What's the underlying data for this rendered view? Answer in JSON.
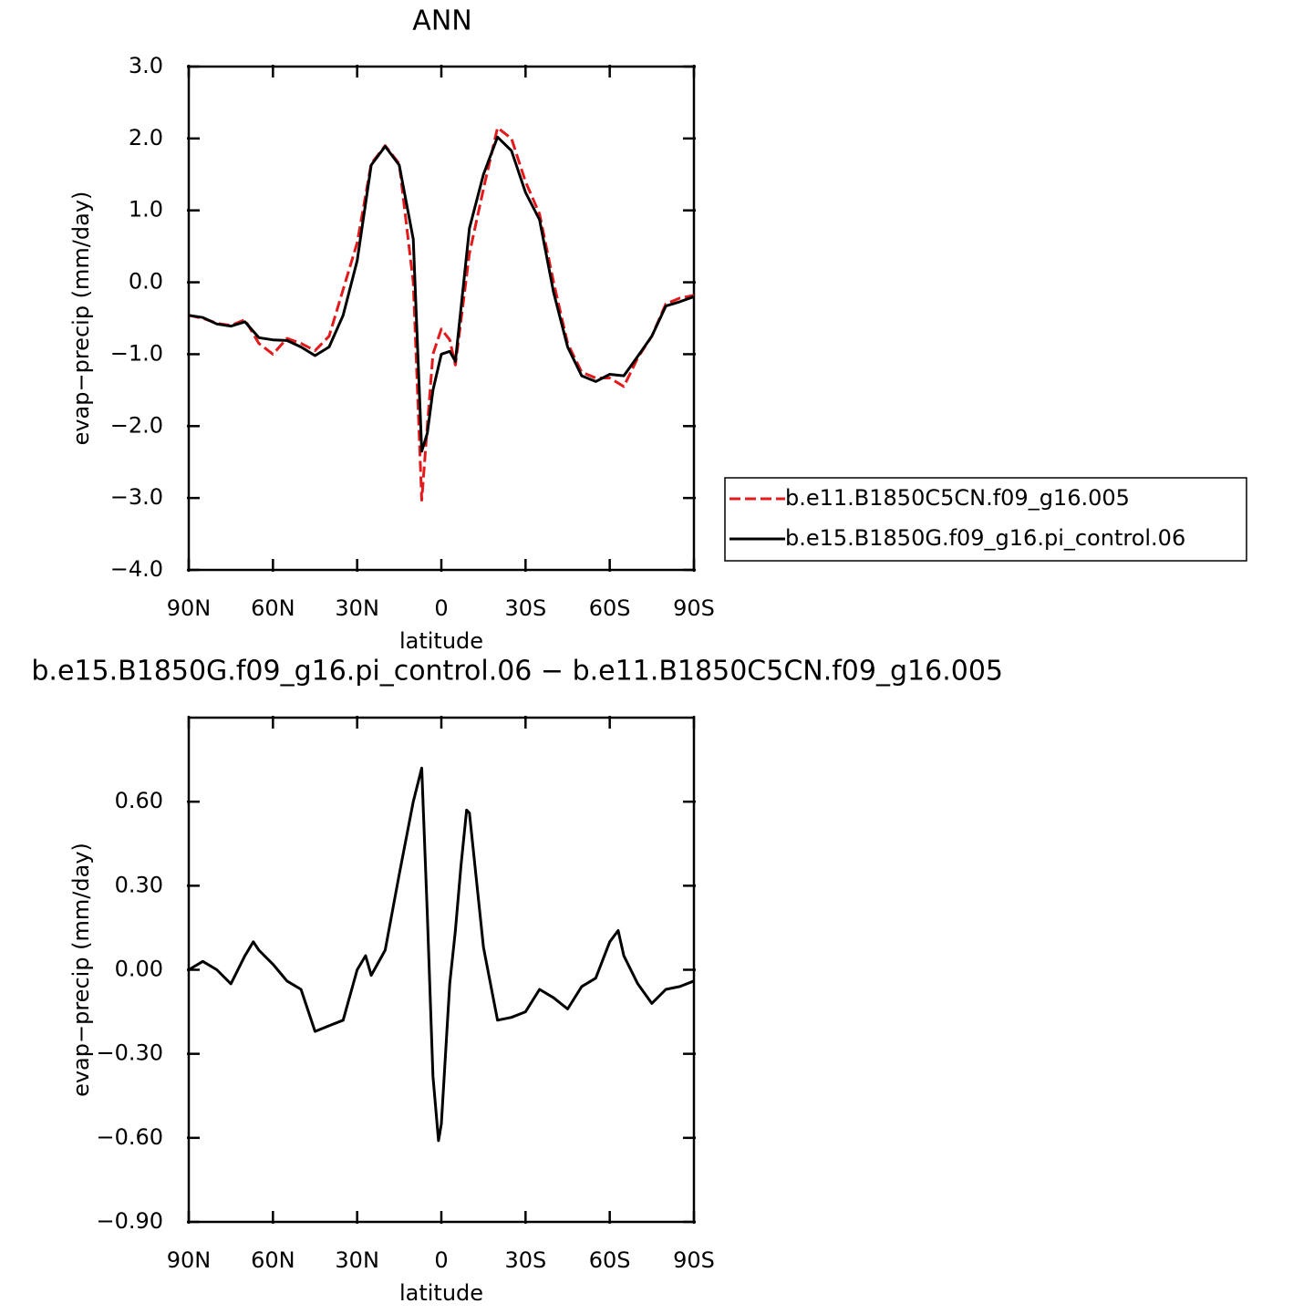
{
  "chart_data": [
    {
      "type": "line",
      "title": "ANN",
      "xlabel": "latitude",
      "ylabel": "evap−precip (mm/day)",
      "x": [
        90,
        85,
        80,
        75,
        70,
        65,
        60,
        55,
        50,
        45,
        40,
        35,
        30,
        25,
        20,
        15,
        10,
        7,
        5,
        3,
        0,
        -3,
        -5,
        -10,
        -15,
        -20,
        -25,
        -30,
        -35,
        -40,
        -45,
        -50,
        -55,
        -60,
        -65,
        -70,
        -75,
        -80,
        -85,
        -90
      ],
      "series": [
        {
          "name": "b.e11.B1850C5CN.f09_g16.005",
          "color": "#e31a1c",
          "dash": "dashed",
          "values": [
            -0.46,
            -0.5,
            -0.57,
            -0.6,
            -0.52,
            -0.85,
            -1.0,
            -0.78,
            -0.85,
            -0.95,
            -0.75,
            -0.1,
            0.55,
            1.65,
            1.9,
            1.65,
            0.0,
            -3.03,
            -2.0,
            -1.0,
            -0.65,
            -0.8,
            -1.15,
            0.4,
            1.3,
            2.15,
            2.0,
            1.4,
            0.95,
            0.0,
            -0.85,
            -1.25,
            -1.33,
            -1.33,
            -1.45,
            -1.05,
            -0.75,
            -0.3,
            -0.22,
            -0.18
          ]
        },
        {
          "name": "b.e15.B1850G.f09_g16.pi_control.06",
          "color": "#000000",
          "dash": "solid",
          "values": [
            -0.46,
            -0.49,
            -0.58,
            -0.61,
            -0.55,
            -0.77,
            -0.8,
            -0.81,
            -0.9,
            -1.02,
            -0.9,
            -0.46,
            0.3,
            1.63,
            1.89,
            1.63,
            0.6,
            -2.35,
            -2.1,
            -1.5,
            -1.0,
            -0.96,
            -1.1,
            0.75,
            1.5,
            2.02,
            1.83,
            1.25,
            0.87,
            -0.14,
            -0.9,
            -1.3,
            -1.38,
            -1.28,
            -1.3,
            -1.03,
            -0.75,
            -0.33,
            -0.27,
            -0.2
          ]
        }
      ],
      "xlim": [
        90,
        -90
      ],
      "xticks": [
        {
          "value": 90,
          "label": "90N"
        },
        {
          "value": 60,
          "label": "60N"
        },
        {
          "value": 30,
          "label": "30N"
        },
        0,
        {
          "value": -30,
          "label": "30S"
        },
        {
          "value": -60,
          "label": "60S"
        },
        {
          "value": -90,
          "label": "90S"
        }
      ],
      "ylim": [
        -4,
        3
      ],
      "yticks": [
        {
          "value": 3,
          "label": "3.0"
        },
        {
          "value": 2,
          "label": "2.0"
        },
        {
          "value": 1,
          "label": "1.0"
        },
        {
          "value": 0,
          "label": "0.0"
        },
        {
          "value": -1,
          "label": "−1.0"
        },
        {
          "value": -2,
          "label": "−2.0"
        },
        {
          "value": -3,
          "label": "−3.0"
        },
        {
          "value": -4,
          "label": "−4.0"
        }
      ],
      "legend": "right"
    },
    {
      "type": "line",
      "title": "b.e15.B1850G.f09_g16.pi_control.06 − b.e11.B1850C5CN.f09_g16.005",
      "xlabel": "latitude",
      "ylabel": "evap−precip (mm/day)",
      "x": [
        90,
        85,
        80,
        75,
        70,
        67,
        65,
        60,
        55,
        50,
        45,
        40,
        35,
        30,
        27,
        25,
        20,
        15,
        10,
        7,
        5,
        3,
        1,
        0,
        -3,
        -5,
        -7,
        -9,
        -10,
        -15,
        -20,
        -25,
        -30,
        -35,
        -40,
        -45,
        -50,
        -55,
        -60,
        -63,
        -65,
        -70,
        -75,
        -80,
        -85,
        -90
      ],
      "values": [
        0.0,
        0.03,
        0.0,
        -0.05,
        0.05,
        0.1,
        0.07,
        0.02,
        -0.04,
        -0.07,
        -0.22,
        -0.2,
        -0.18,
        0.0,
        0.05,
        -0.02,
        0.07,
        0.34,
        0.6,
        0.72,
        0.2,
        -0.38,
        -0.61,
        -0.55,
        -0.05,
        0.14,
        0.37,
        0.57,
        0.56,
        0.08,
        -0.18,
        -0.17,
        -0.15,
        -0.07,
        -0.1,
        -0.14,
        -0.06,
        -0.03,
        0.1,
        0.14,
        0.05,
        -0.05,
        -0.12,
        -0.07,
        -0.06,
        -0.04
      ],
      "color": "#000000",
      "xlim": [
        90,
        -90
      ],
      "xticks": [
        {
          "value": 90,
          "label": "90N"
        },
        {
          "value": 60,
          "label": "60N"
        },
        {
          "value": 30,
          "label": "30N"
        },
        0,
        {
          "value": -30,
          "label": "30S"
        },
        {
          "value": -60,
          "label": "60S"
        },
        {
          "value": -90,
          "label": "90S"
        }
      ],
      "ylim": [
        -0.9,
        0.9
      ],
      "yticks": [
        {
          "value": -0.9,
          "label": "−0.90"
        },
        {
          "value": -0.6,
          "label": "−0.60"
        },
        {
          "value": -0.3,
          "label": "−0.30"
        },
        {
          "value": 0,
          "label": "0.00"
        },
        {
          "value": 0.3,
          "label": "0.30"
        },
        {
          "value": 0.6,
          "label": "0.60"
        }
      ]
    }
  ]
}
